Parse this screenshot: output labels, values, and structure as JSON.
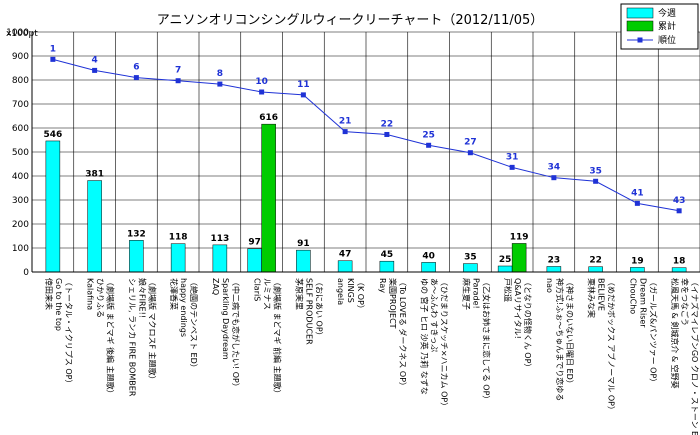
{
  "chart_data": {
    "type": "bar",
    "title": "アニソンオリコンシングルウィークリーチャート（2012/11/05）",
    "ylabel": "x100pt",
    "ylim": [
      0,
      1000
    ],
    "yticks": [
      0,
      100,
      200,
      300,
      400,
      500,
      600,
      700,
      800,
      900,
      1000
    ],
    "grid": true,
    "legend_position": "top-right",
    "series": [
      {
        "name": "今週",
        "type": "bar",
        "color": "#00ffff"
      },
      {
        "name": "累計",
        "type": "bar",
        "color": "#00cc00"
      },
      {
        "name": "順位",
        "type": "line",
        "color": "#1f32d6"
      }
    ],
    "categories": [
      {
        "lines": [
          "倖田来未",
          "Go to the top",
          "（トータル・イクリプス OP）"
        ],
        "week": 546,
        "cumulative": null,
        "rank": 1,
        "rank_line": 886
      },
      {
        "lines": [
          "Kalafina",
          "ひかりふる",
          "（劇場版 まどマギ 後編 主題歌）"
        ],
        "week": 381,
        "cumulative": null,
        "rank": 4,
        "rank_line": 840
      },
      {
        "lines": [
          "シェリル, ランカ FIRE BOMBER",
          "娘々FIRE!!",
          "（劇場版 マクロスF 主題歌）"
        ],
        "week": 132,
        "cumulative": null,
        "rank": 6,
        "rank_line": 810
      },
      {
        "lines": [
          "花澤香菜",
          "happy endings",
          "（絶園のテンペスト ED）"
        ],
        "week": 118,
        "cumulative": null,
        "rank": 7,
        "rank_line": 797
      },
      {
        "lines": [
          "ZAQ",
          "Sparkling Daydream",
          "（中二病でも恋がしたい! OP）"
        ],
        "week": 113,
        "cumulative": null,
        "rank": 8,
        "rank_line": 783
      },
      {
        "lines": [
          "ClariS",
          "ルミナス",
          "（劇場版 まどマギ 前編 主題歌）"
        ],
        "week": 97,
        "cumulative": 616,
        "rank": 10,
        "rank_line": 750
      },
      {
        "lines": [
          "茅原実里",
          "SELF PRODUCER",
          "（おにあい OP）"
        ],
        "week": 91,
        "cumulative": null,
        "rank": 11,
        "rank_line": 738
      },
      {
        "lines": [
          "angela",
          "KINGS",
          "（K OP）"
        ],
        "week": 47,
        "cumulative": null,
        "rank": 21,
        "rank_line": 585
      },
      {
        "lines": [
          "Ray",
          "楽園PROJECT",
          "（To LOVEる ダークネス OP）"
        ],
        "week": 45,
        "cumulative": null,
        "rank": 22,
        "rank_line": 573
      },
      {
        "lines": [
          "ゆの 宮子 ヒロ 沙英 乃莉 なずな",
          "あ～ふんわ すきっぷ",
          "（ひだまりスケッチ×ハニカム OP）"
        ],
        "week": 40,
        "cumulative": null,
        "rank": 25,
        "rank_line": 528
      },
      {
        "lines": [
          "麻生夏子",
          "Parade!",
          "（乙女はお姉さまに恋してる OP）"
        ],
        "week": 35,
        "cumulative": null,
        "rank": 27,
        "rank_line": 497
      },
      {
        "lines": [
          "戸松遥",
          "Q&Aリサイタル!",
          "（となりの怪物くん OP）"
        ],
        "week": 25,
        "cumulative": 119,
        "rank": 31,
        "rank_line": 436
      },
      {
        "lines": [
          "nao",
          "神方式!ふぉ～ちゅんまでり恋ゆる",
          "（神さまのいない日曜日 ED）"
        ],
        "week": 23,
        "cumulative": null,
        "rank": 34,
        "rank_line": 393
      },
      {
        "lines": [
          "栗林みな実",
          "BELIEVE",
          "（めだかボックス アブノーマル OP）"
        ],
        "week": 22,
        "cumulative": null,
        "rank": 35,
        "rank_line": 378
      },
      {
        "lines": [
          "ChouCho",
          "Dream Riser",
          "（ガールズ&パンツァー OP）"
        ],
        "week": 19,
        "cumulative": null,
        "rank": 41,
        "rank_line": 286
      },
      {
        "lines": [
          "松風天馬 & 剣城京介 & 空野葵",
          "幸をつなごう",
          "（イナズマイレブンGO クロノ・ストーン ED）"
        ],
        "week": 18,
        "cumulative": null,
        "rank": 43,
        "rank_line": 255
      }
    ]
  }
}
